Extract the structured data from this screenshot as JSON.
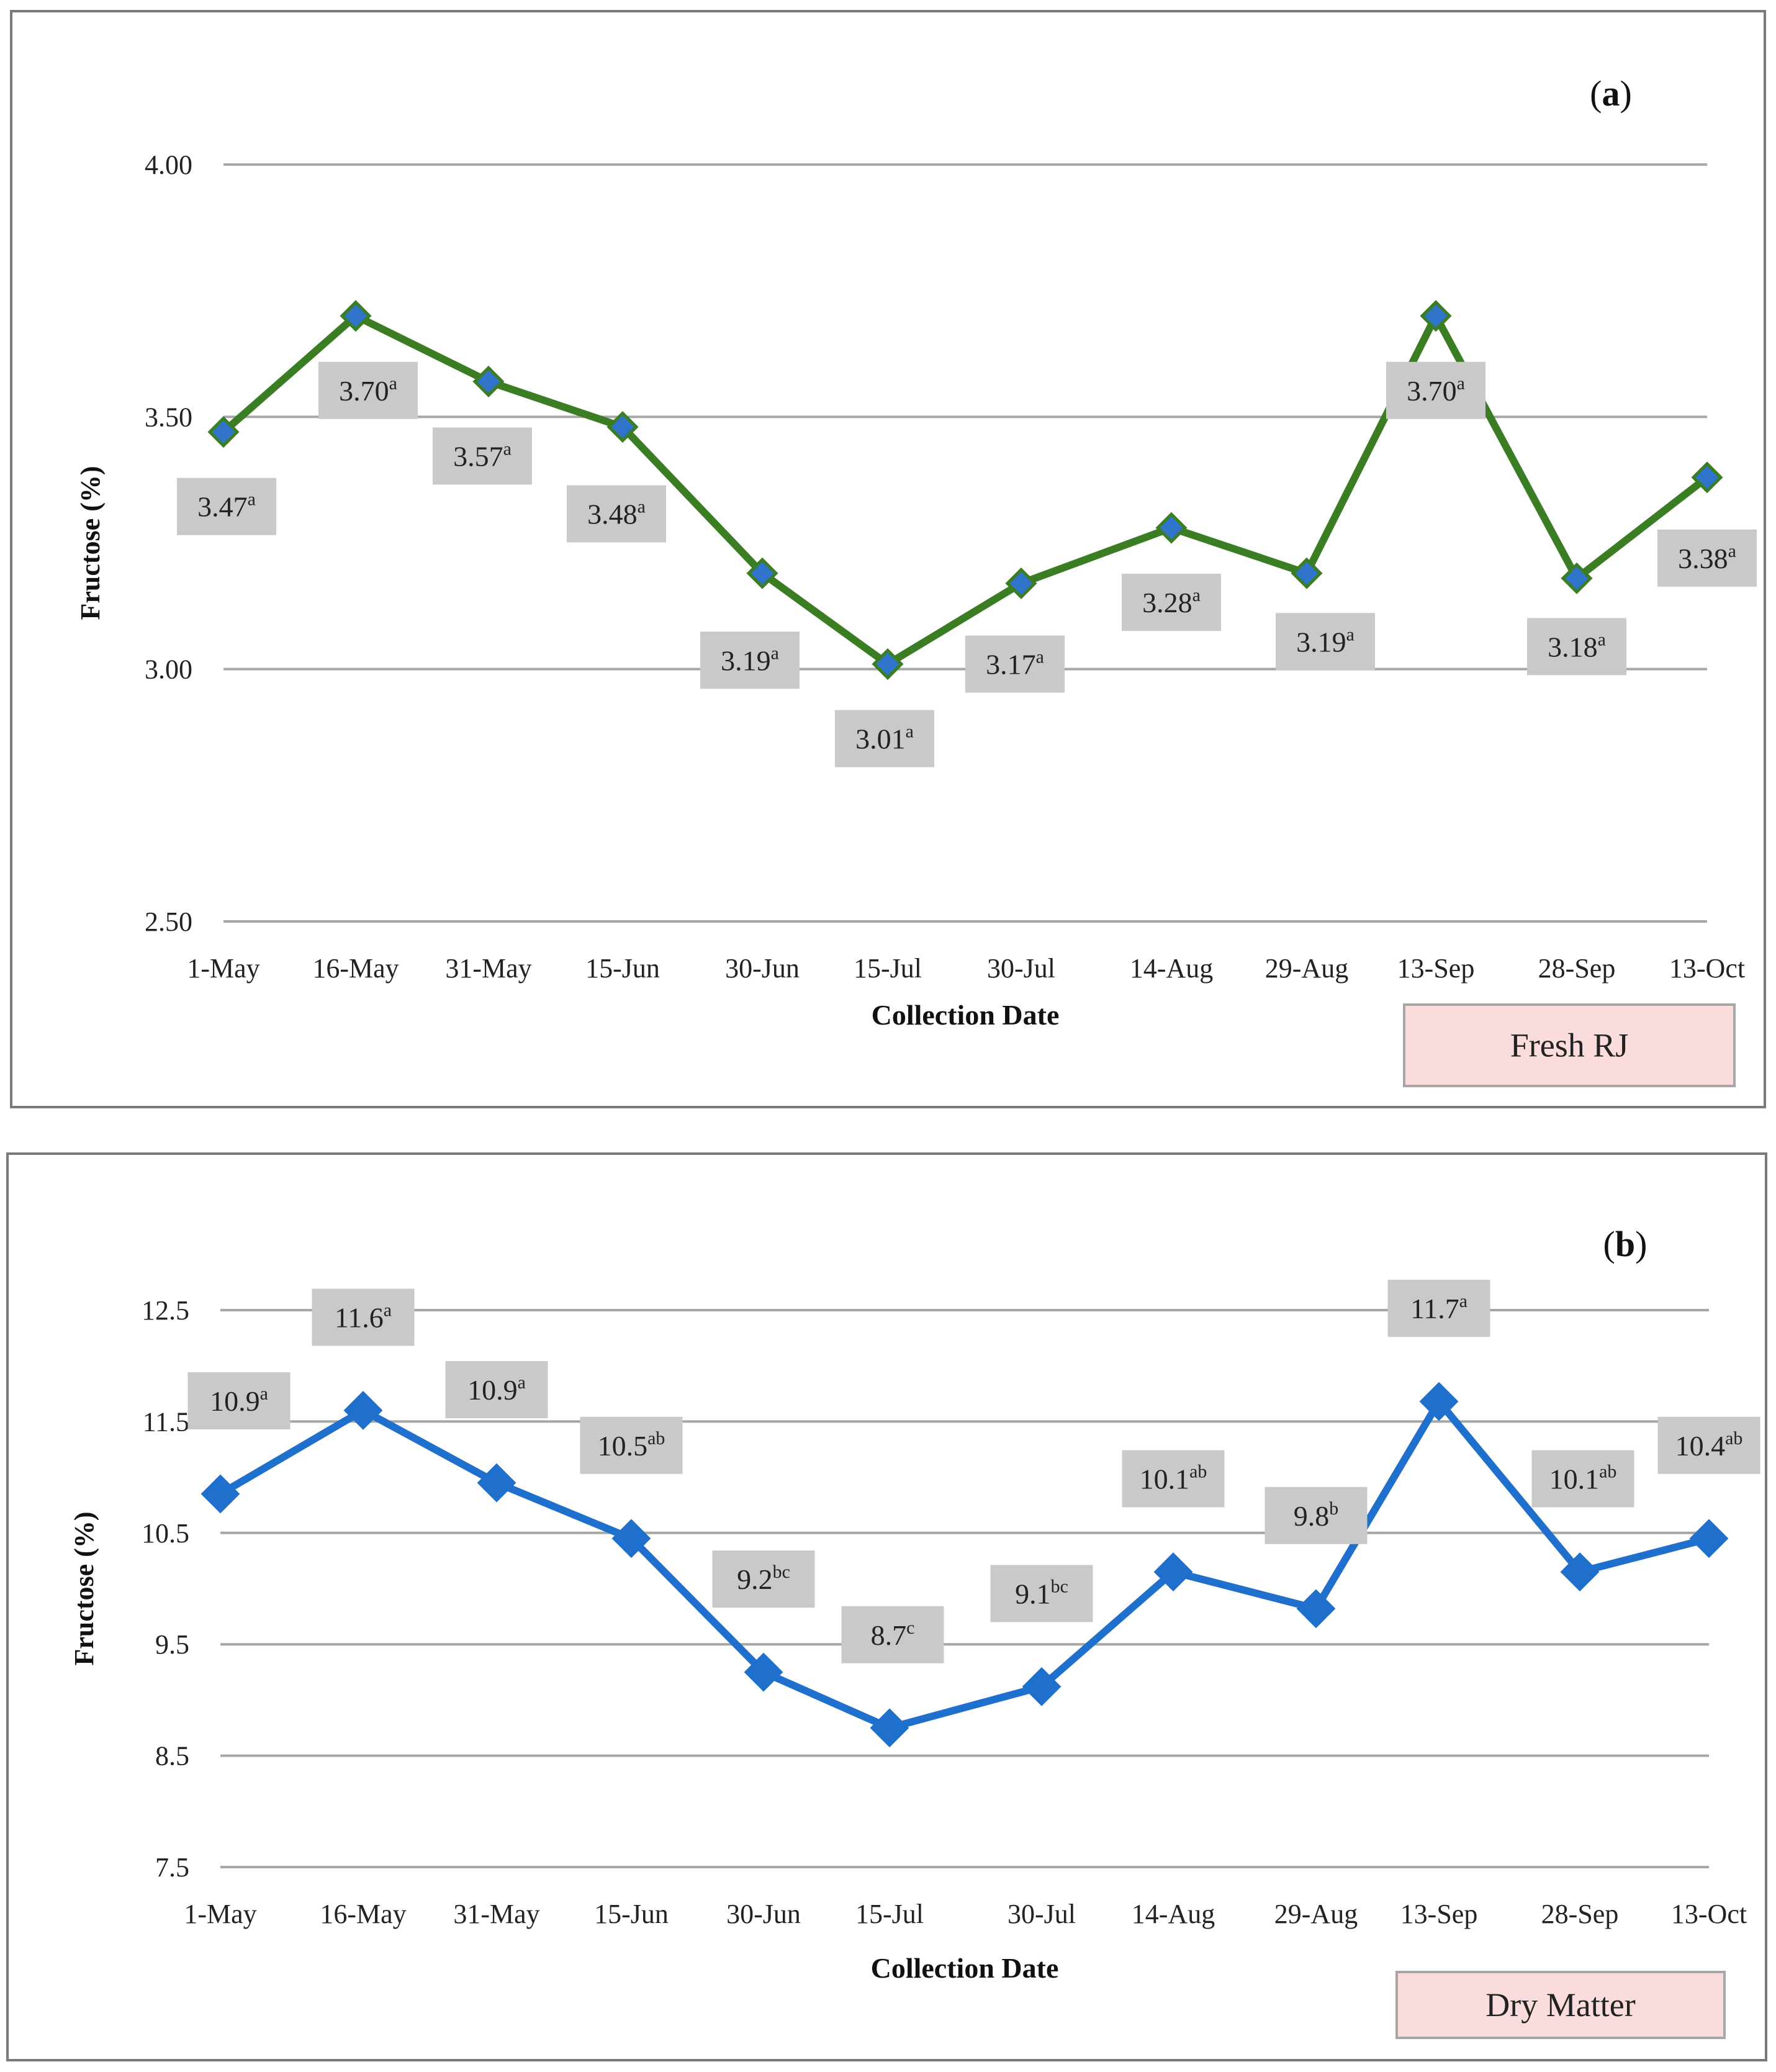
{
  "chart_data": [
    {
      "type": "line",
      "panel_label": "(a)",
      "categories": [
        "1-May",
        "16-May",
        "31-May",
        "15-Jun",
        "30-Jun",
        "15-Jul",
        "30-Jul",
        "14-Aug",
        "29-Aug",
        "13-Sep",
        "28-Sep",
        "13-Oct"
      ],
      "series": [
        {
          "values": [
            3.47,
            3.7,
            3.57,
            3.48,
            3.19,
            3.01,
            3.17,
            3.28,
            3.19,
            3.7,
            3.18,
            3.38
          ],
          "labels": [
            "3.47",
            "3.70",
            "3.57",
            "3.48",
            "3.19",
            "3.01",
            "3.17",
            "3.28",
            "3.19",
            "3.70",
            "3.18",
            "3.38"
          ],
          "superscripts": [
            "a",
            "a",
            "a",
            "a",
            "a",
            "a",
            "a",
            "a",
            "a",
            "a",
            "a",
            "a"
          ],
          "line_color": "#3a7d22",
          "marker_color": "#2f74c8"
        }
      ],
      "xlabel": "Collection Date",
      "ylabel": "Fructose (%)",
      "ylim": [
        2.5,
        4.0
      ],
      "yticks": [
        "4.00",
        "3.50",
        "3.00",
        "2.50"
      ],
      "ytick_values": [
        4.0,
        3.5,
        3.0,
        2.5
      ],
      "grid": true,
      "legend_box": "Fresh RJ",
      "legend_box_color": "#fadcdc"
    },
    {
      "type": "line",
      "panel_label": "(b)",
      "categories": [
        "1-May",
        "16-May",
        "31-May",
        "15-Jun",
        "30-Jun",
        "15-Jul",
        "30-Jul",
        "14-Aug",
        "29-Aug",
        "13-Sep",
        "28-Sep",
        "13-Oct"
      ],
      "series": [
        {
          "values": [
            10.85,
            11.6,
            10.95,
            10.45,
            9.25,
            8.75,
            9.12,
            10.15,
            9.82,
            11.68,
            10.15,
            10.45
          ],
          "labels": [
            "10.9",
            "11.6",
            "10.9",
            "10.5",
            "9.2",
            "8.7",
            "9.1",
            "10.1",
            "9.8",
            "11.7",
            "10.1",
            "10.4"
          ],
          "superscripts": [
            "a",
            "a",
            "a",
            "ab",
            "bc",
            "c",
            "bc",
            "ab",
            "b",
            "a",
            "ab",
            "ab"
          ],
          "line_color": "#1f6fcc",
          "marker_color": "#1f6fcc"
        }
      ],
      "xlabel": "Collection Date",
      "ylabel": "Fructose (%)",
      "ylim": [
        7.5,
        12.5
      ],
      "yticks": [
        "12.5",
        "11.5",
        "10.5",
        "9.5",
        "8.5",
        "7.5"
      ],
      "ytick_values": [
        12.5,
        11.5,
        10.5,
        9.5,
        8.5,
        7.5
      ],
      "grid": true,
      "legend_box": "Dry Matter",
      "legend_box_color": "#fadcdc"
    }
  ]
}
